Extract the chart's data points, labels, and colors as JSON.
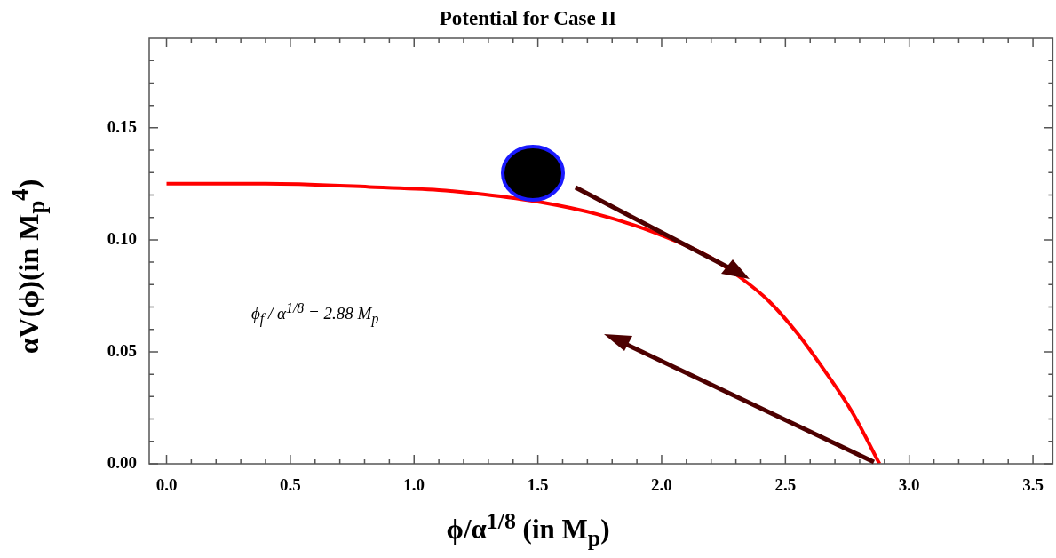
{
  "chart_data": {
    "type": "line",
    "title": "Potential for Case II",
    "xlabel": "ϕ/α$^{1/8}$ (in M$_{p}$)",
    "ylabel": "αV(ϕ)(in M$_{p}$$^{4}$)",
    "x": [
      0,
      0.4,
      0.82,
      1.1,
      1.28,
      1.51,
      1.74,
      1.97,
      2.2,
      2.32,
      2.43,
      2.55,
      2.66,
      2.77,
      2.88
    ],
    "series": [
      {
        "color": "#ff0000",
        "values": [
          0.125,
          0.125,
          0.1236,
          0.1222,
          0.1203,
          0.1168,
          0.1114,
          0.1033,
          0.0919,
          0.083,
          0.073,
          0.058,
          0.0413,
          0.023,
          0
        ]
      }
    ],
    "xlim": [
      -0.07,
      3.58
    ],
    "ylim": [
      0,
      0.19
    ],
    "xticks": [
      {
        "value": 0,
        "label": "0.0"
      },
      {
        "value": 0.1,
        "label": null
      },
      {
        "value": 0.2,
        "label": null
      },
      {
        "value": 0.3,
        "label": null
      },
      {
        "value": 0.4,
        "label": null
      },
      {
        "value": 0.5,
        "label": "0.5"
      },
      {
        "value": 0.6,
        "label": null
      },
      {
        "value": 0.7,
        "label": null
      },
      {
        "value": 0.8,
        "label": null
      },
      {
        "value": 0.9,
        "label": null
      },
      {
        "value": 1,
        "label": "1.0"
      },
      {
        "value": 1.1,
        "label": null
      },
      {
        "value": 1.2,
        "label": null
      },
      {
        "value": 1.3,
        "label": null
      },
      {
        "value": 1.4,
        "label": null
      },
      {
        "value": 1.5,
        "label": "1.5"
      },
      {
        "value": 1.6,
        "label": null
      },
      {
        "value": 1.7,
        "label": null
      },
      {
        "value": 1.8,
        "label": null
      },
      {
        "value": 1.9,
        "label": null
      },
      {
        "value": 2,
        "label": "2.0"
      },
      {
        "value": 2.1,
        "label": null
      },
      {
        "value": 2.2,
        "label": null
      },
      {
        "value": 2.3,
        "label": null
      },
      {
        "value": 2.4,
        "label": null
      },
      {
        "value": 2.5,
        "label": "2.5"
      },
      {
        "value": 2.6,
        "label": null
      },
      {
        "value": 2.7,
        "label": null
      },
      {
        "value": 2.8,
        "label": null
      },
      {
        "value": 2.9,
        "label": null
      },
      {
        "value": 3,
        "label": "3.0"
      },
      {
        "value": 3.1,
        "label": null
      },
      {
        "value": 3.2,
        "label": null
      },
      {
        "value": 3.3,
        "label": null
      },
      {
        "value": 3.4,
        "label": null
      },
      {
        "value": 3.5,
        "label": "3.5"
      }
    ],
    "yticks": [
      {
        "value": 0,
        "label": "0.00"
      },
      {
        "value": 0.01,
        "label": null
      },
      {
        "value": 0.02,
        "label": null
      },
      {
        "value": 0.03,
        "label": null
      },
      {
        "value": 0.04,
        "label": null
      },
      {
        "value": 0.05,
        "label": "0.05"
      },
      {
        "value": 0.06,
        "label": null
      },
      {
        "value": 0.07,
        "label": null
      },
      {
        "value": 0.08,
        "label": null
      },
      {
        "value": 0.09,
        "label": null
      },
      {
        "value": 0.1,
        "label": "0.10"
      },
      {
        "value": 0.11,
        "label": null
      },
      {
        "value": 0.12,
        "label": null
      },
      {
        "value": 0.13,
        "label": null
      },
      {
        "value": 0.14,
        "label": null
      },
      {
        "value": 0.15,
        "label": "0.15"
      },
      {
        "value": 0.16,
        "label": null
      },
      {
        "value": 0.17,
        "label": null
      },
      {
        "value": 0.18,
        "label": null
      }
    ],
    "annotations": [
      "ϕ$_{f}$ / α$^{1/8}$ = 2.88 M$_{p}$"
    ],
    "grid": false,
    "legend": false,
    "marker": "none",
    "line_style": "solid"
  }
}
